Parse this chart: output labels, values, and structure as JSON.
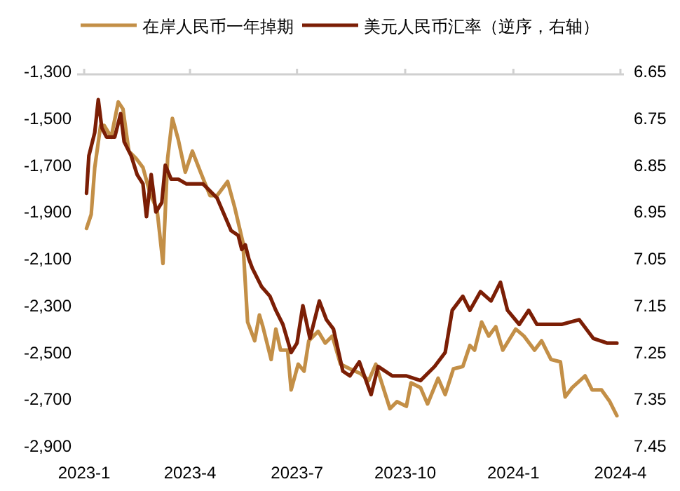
{
  "chart_data": {
    "type": "line",
    "legend": "top",
    "grid": false,
    "line_style": "solid",
    "marker": "none",
    "xlim": [
      "2022-12-26",
      "2024-04-04"
    ],
    "xticks": [
      {
        "value": "2023-01-01",
        "label": "2023-1"
      },
      {
        "value": "2023-04-01",
        "label": "2023-4"
      },
      {
        "value": "2023-07-01",
        "label": "2023-7"
      },
      {
        "value": "2023-10-01",
        "label": "2023-10"
      },
      {
        "value": "2024-01-01",
        "label": "2024-1"
      },
      {
        "value": "2024-04-01",
        "label": "2024-4"
      }
    ],
    "ylim": [
      -2900,
      -1300
    ],
    "yticks": [
      {
        "value": -2900,
        "label": "-2,900"
      },
      {
        "value": -2700,
        "label": "-2,700"
      },
      {
        "value": -2500,
        "label": "-2,500"
      },
      {
        "value": -2300,
        "label": "-2,300"
      },
      {
        "value": -2100,
        "label": "-2,100"
      },
      {
        "value": -1900,
        "label": "-1,900"
      },
      {
        "value": -1700,
        "label": "-1,700"
      },
      {
        "value": -1500,
        "label": "-1,500"
      },
      {
        "value": -1300,
        "label": "-1,300"
      }
    ],
    "y2lim": [
      7.45,
      6.65
    ],
    "y2ticks": [
      6.65,
      6.75,
      6.85,
      6.95,
      7.05,
      7.15,
      7.25,
      7.35,
      7.45
    ],
    "series": [
      {
        "name": "在岸人民币一年掉期",
        "color": "#c38f47",
        "axis": "y",
        "x": [
          "2023-01-03",
          "2023-01-07",
          "2023-01-10",
          "2023-01-15",
          "2023-01-18",
          "2023-01-24",
          "2023-01-30",
          "2023-02-03",
          "2023-02-08",
          "2023-02-14",
          "2023-02-20",
          "2023-02-26",
          "2023-03-04",
          "2023-03-09",
          "2023-03-13",
          "2023-03-17",
          "2023-03-22",
          "2023-03-28",
          "2023-04-03",
          "2023-04-10",
          "2023-04-18",
          "2023-04-24",
          "2023-05-03",
          "2023-05-09",
          "2023-05-16",
          "2023-05-20",
          "2023-05-26",
          "2023-05-30",
          "2023-06-02",
          "2023-06-09",
          "2023-06-13",
          "2023-06-17",
          "2023-06-23",
          "2023-06-26",
          "2023-07-02",
          "2023-07-07",
          "2023-07-11",
          "2023-07-19",
          "2023-07-25",
          "2023-07-31",
          "2023-08-07",
          "2023-08-15",
          "2023-08-24",
          "2023-08-31",
          "2023-09-06",
          "2023-09-18",
          "2023-09-24",
          "2023-10-02",
          "2023-10-06",
          "2023-10-14",
          "2023-10-20",
          "2023-10-29",
          "2023-11-04",
          "2023-11-11",
          "2023-11-19",
          "2023-11-25",
          "2023-11-29",
          "2023-12-05",
          "2023-12-11",
          "2023-12-17",
          "2023-12-23",
          "2024-01-03",
          "2024-01-10",
          "2024-01-19",
          "2024-01-25",
          "2024-02-02",
          "2024-02-10",
          "2024-02-14",
          "2024-02-20",
          "2024-03-02",
          "2024-03-08",
          "2024-03-16",
          "2024-03-23",
          "2024-03-29"
        ],
        "values": [
          -1970,
          -1910,
          -1710,
          -1530,
          -1530,
          -1580,
          -1430,
          -1460,
          -1640,
          -1670,
          -1710,
          -1820,
          -1890,
          -2120,
          -1670,
          -1500,
          -1590,
          -1730,
          -1640,
          -1730,
          -1830,
          -1830,
          -1770,
          -1880,
          -2030,
          -2370,
          -2450,
          -2340,
          -2390,
          -2530,
          -2400,
          -2490,
          -2490,
          -2660,
          -2550,
          -2580,
          -2450,
          -2410,
          -2460,
          -2430,
          -2550,
          -2570,
          -2590,
          -2620,
          -2550,
          -2740,
          -2710,
          -2730,
          -2630,
          -2650,
          -2720,
          -2610,
          -2680,
          -2570,
          -2560,
          -2470,
          -2490,
          -2370,
          -2430,
          -2390,
          -2490,
          -2400,
          -2430,
          -2490,
          -2450,
          -2530,
          -2540,
          -2690,
          -2650,
          -2600,
          -2660,
          -2660,
          -2710,
          -2770
        ]
      },
      {
        "name": "美元人民币汇率（逆序，右轴）",
        "color": "#7b1e05",
        "axis": "y2",
        "x": [
          "2023-01-03",
          "2023-01-05",
          "2023-01-10",
          "2023-01-13",
          "2023-01-16",
          "2023-01-20",
          "2023-01-27",
          "2023-02-01",
          "2023-02-04",
          "2023-02-10",
          "2023-02-15",
          "2023-02-20",
          "2023-02-23",
          "2023-02-27",
          "2023-03-03",
          "2023-03-08",
          "2023-03-11",
          "2023-03-16",
          "2023-03-22",
          "2023-03-29",
          "2023-04-12",
          "2023-04-24",
          "2023-05-06",
          "2023-05-12",
          "2023-05-15",
          "2023-05-18",
          "2023-05-21",
          "2023-05-24",
          "2023-06-01",
          "2023-06-08",
          "2023-06-13",
          "2023-06-19",
          "2023-06-26",
          "2023-07-01",
          "2023-07-06",
          "2023-07-12",
          "2023-07-20",
          "2023-07-26",
          "2023-08-01",
          "2023-08-09",
          "2023-08-15",
          "2023-08-23",
          "2023-09-02",
          "2023-09-08",
          "2023-09-20",
          "2023-10-02",
          "2023-10-14",
          "2023-10-26",
          "2023-11-04",
          "2023-11-10",
          "2023-11-19",
          "2023-11-25",
          "2023-12-04",
          "2023-12-13",
          "2023-12-21",
          "2023-12-27",
          "2024-01-06",
          "2024-01-14",
          "2024-01-21",
          "2024-02-11",
          "2024-02-26",
          "2024-03-09",
          "2024-03-21",
          "2024-03-29"
        ],
        "values": [
          6.91,
          6.83,
          6.78,
          6.71,
          6.77,
          6.79,
          6.79,
          6.74,
          6.8,
          6.83,
          6.87,
          6.89,
          6.96,
          6.87,
          6.95,
          6.93,
          6.85,
          6.88,
          6.88,
          6.89,
          6.89,
          6.92,
          6.99,
          7.0,
          7.03,
          7.02,
          7.05,
          7.07,
          7.11,
          7.13,
          7.16,
          7.19,
          7.25,
          7.23,
          7.15,
          7.22,
          7.14,
          7.18,
          7.2,
          7.29,
          7.3,
          7.27,
          7.34,
          7.28,
          7.3,
          7.3,
          7.31,
          7.28,
          7.25,
          7.16,
          7.13,
          7.16,
          7.12,
          7.14,
          7.1,
          7.16,
          7.19,
          7.16,
          7.19,
          7.19,
          7.18,
          7.22,
          7.23,
          7.23
        ]
      }
    ]
  }
}
